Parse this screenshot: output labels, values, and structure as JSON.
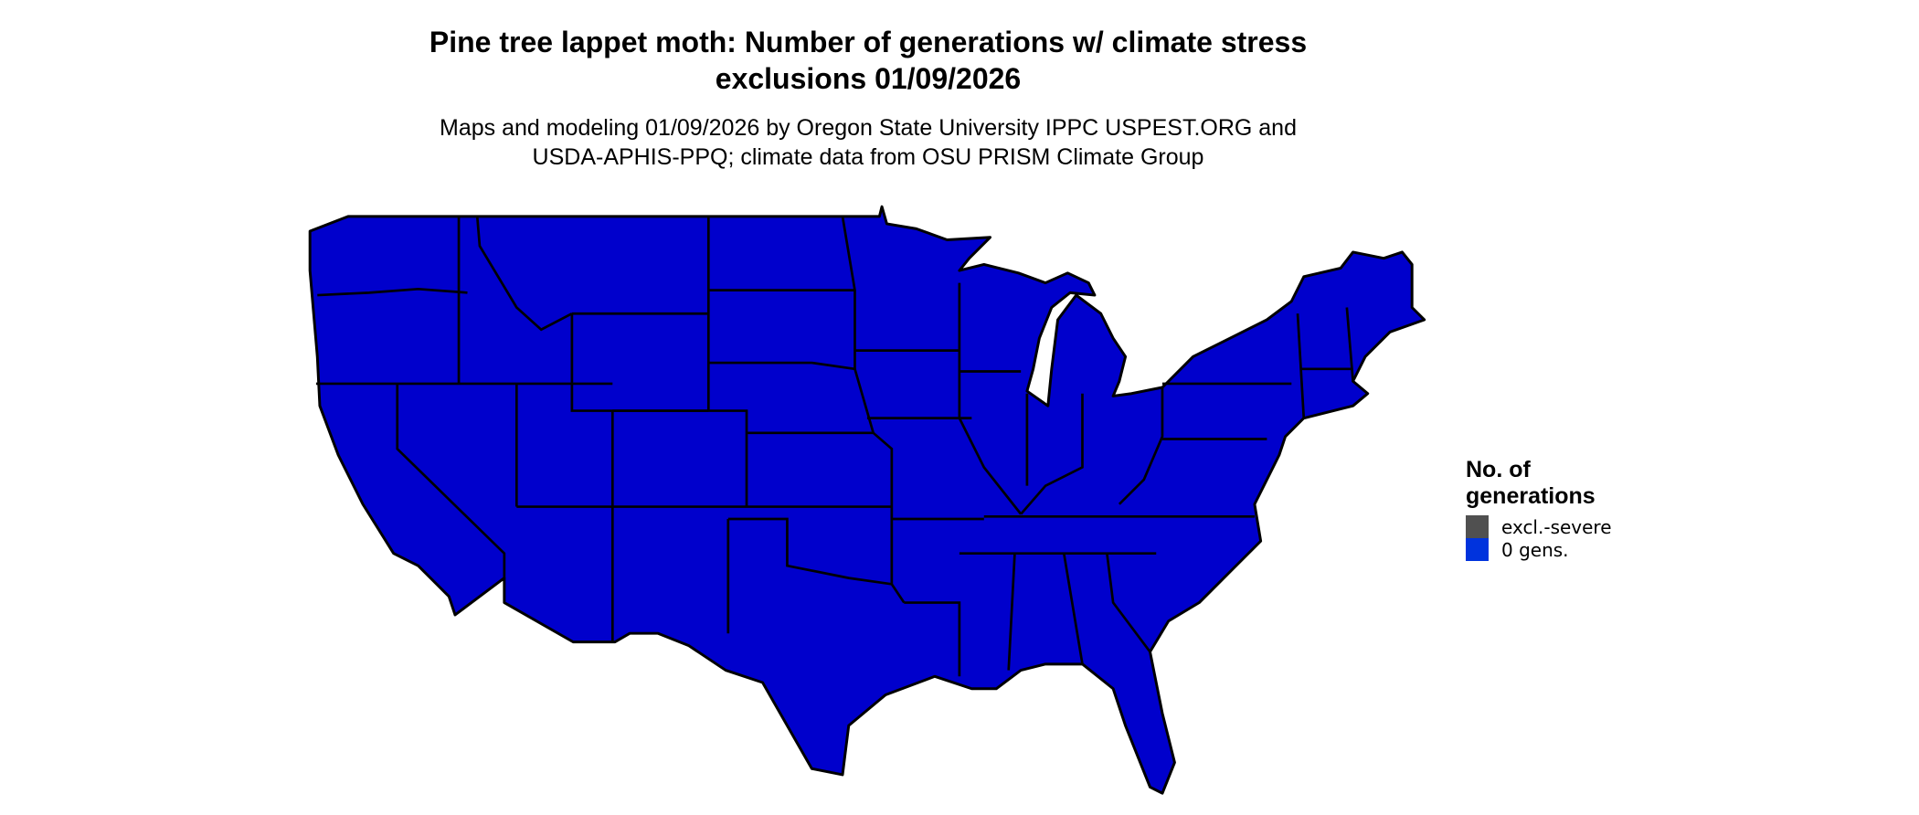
{
  "title": {
    "line1": "Pine tree lappet moth: Number of generations w/ climate stress",
    "line2": "exclusions 01/09/2026"
  },
  "subtitle": {
    "line1": "Maps and modeling 01/09/2026 by Oregon State University IPPC USPEST.ORG and",
    "line2": "USDA-APHIS-PPQ; climate data from OSU PRISM Climate Group"
  },
  "map": {
    "region": "Contiguous United States",
    "fill_category": "0 gens.",
    "fill_color": "#0000CC",
    "border_color": "#000000"
  },
  "legend": {
    "title_line1": "No. of",
    "title_line2": "generations",
    "items": [
      {
        "label": "excl.-severe",
        "color": "#505050"
      },
      {
        "label": "0 gens.",
        "color": "#0033DD"
      }
    ]
  }
}
